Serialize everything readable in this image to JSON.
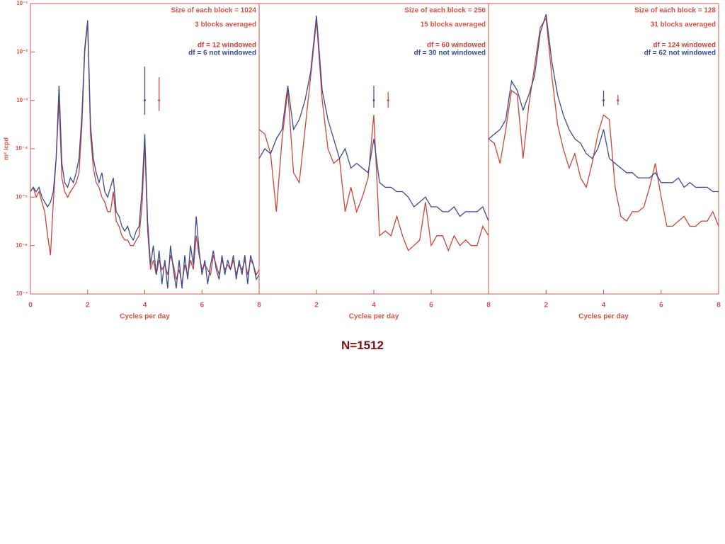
{
  "chart_data": [
    {
      "type": "line",
      "yscale": "log",
      "xlabel": "Cycles per day",
      "ylabel": "m² /cpd",
      "annotations": [
        "Size of each block = 1024",
        "3 blocks averaged"
      ],
      "xlim": [
        0,
        8
      ],
      "xticks": [
        0,
        2,
        4,
        6,
        8
      ],
      "ylim": [
        1e-07,
        0.1
      ],
      "yticks": [
        {
          "value": 1e-07,
          "label": "10⁻⁷"
        },
        {
          "value": 1e-06,
          "label": "10⁻⁶"
        },
        {
          "value": 1e-05,
          "label": "10⁻⁵"
        },
        {
          "value": 0.0001,
          "label": "10⁻⁴"
        },
        {
          "value": 0.001,
          "label": "10⁻³"
        },
        {
          "value": 0.01,
          "label": "10⁻²"
        },
        {
          "value": 0.1,
          "label": "10⁻¹"
        }
      ],
      "x": [
        0,
        0.1,
        0.2,
        0.3,
        0.4,
        0.5,
        0.6,
        0.7,
        0.8,
        0.9,
        1,
        1.1,
        1.2,
        1.3,
        1.4,
        1.5,
        1.6,
        1.7,
        1.8,
        1.9,
        2,
        2.1,
        2.2,
        2.3,
        2.4,
        2.5,
        2.6,
        2.7,
        2.8,
        2.9,
        3,
        3.1,
        3.2,
        3.3,
        3.4,
        3.5,
        3.6,
        3.7,
        3.8,
        3.9,
        4,
        4.1,
        4.2,
        4.3,
        4.4,
        4.5,
        4.6,
        4.7,
        4.8,
        4.9,
        5,
        5.1,
        5.2,
        5.3,
        5.4,
        5.5,
        5.6,
        5.7,
        5.8,
        5.9,
        6,
        6.1,
        6.2,
        6.3,
        6.4,
        6.5,
        6.6,
        6.7,
        6.8,
        6.9,
        7,
        7.1,
        7.2,
        7.3,
        7.4,
        7.5,
        7.6,
        7.7,
        7.8,
        7.9,
        8
      ],
      "series": [
        {
          "name": "df =  12 windowed",
          "color": "#c8443c",
          "values": [
            1.3e-05,
            1.6e-05,
            1e-05,
            1.3e-05,
            7.9e-06,
            5e-06,
            1.6e-06,
            6.3e-07,
            7.9e-06,
            6.3e-05,
            0.001,
            2.5e-05,
            1.3e-05,
            1e-05,
            1.3e-05,
            1.6e-05,
            2e-05,
            3.2e-05,
            0.00032,
            0.01,
            0.04,
            0.0002,
            4e-05,
            2e-05,
            1.6e-05,
            1e-05,
            7.9e-06,
            5e-06,
            5e-06,
            1.3e-05,
            3.2e-06,
            2.5e-06,
            1.6e-06,
            1.3e-06,
            1.3e-06,
            1e-06,
            1e-06,
            1.3e-06,
            1.6e-06,
            6.3e-06,
            0.00013,
            2e-06,
            3.2e-07,
            5e-07,
            2.5e-07,
            5e-07,
            3.2e-07,
            4e-07,
            2.5e-07,
            6.3e-07,
            4e-07,
            2e-07,
            3.2e-07,
            1.6e-07,
            4e-07,
            2.5e-07,
            5e-07,
            3.2e-07,
            1.6e-06,
            6.3e-07,
            3.2e-07,
            4e-07,
            3.2e-07,
            2.5e-07,
            6.3e-07,
            4e-07,
            2.5e-07,
            5e-07,
            3.2e-07,
            4e-07,
            3.2e-07,
            5e-07,
            2.5e-07,
            4e-07,
            3.2e-07,
            5e-07,
            2.5e-07,
            5e-07,
            4e-07,
            2.5e-07,
            3.2e-07
          ]
        },
        {
          "name": "df =  6 not windowed",
          "color": "#3b4a8e",
          "values": [
            1.3e-05,
            1.6e-05,
            1.3e-05,
            1.6e-05,
            1e-05,
            7.9e-06,
            6.3e-06,
            7.9e-06,
            1.3e-05,
            6.3e-05,
            0.002,
            5e-05,
            2e-05,
            1.6e-05,
            2.5e-05,
            2e-05,
            3.2e-05,
            6.3e-05,
            0.0005,
            0.012,
            0.045,
            0.00032,
            6.3e-05,
            3.2e-05,
            2e-05,
            3.2e-05,
            1.3e-05,
            1e-05,
            1.6e-05,
            2.5e-05,
            5e-06,
            4e-06,
            2.5e-06,
            2e-06,
            2.5e-06,
            1.6e-06,
            1.3e-06,
            2e-06,
            2.5e-06,
            1.3e-05,
            0.0002,
            3.2e-06,
            4e-07,
            1e-06,
            2.5e-07,
            7.9e-07,
            1.6e-07,
            5e-07,
            1.3e-07,
            1e-06,
            3.2e-07,
            1.3e-07,
            5e-07,
            1.3e-07,
            6.3e-07,
            2e-07,
            1e-06,
            4e-07,
            4e-06,
            7.9e-07,
            2.5e-07,
            5e-07,
            1.6e-07,
            4e-07,
            7.9e-07,
            3.2e-07,
            2e-07,
            6.3e-07,
            2.5e-07,
            5e-07,
            3.2e-07,
            6.3e-07,
            2e-07,
            5e-07,
            2.5e-07,
            6.3e-07,
            1.6e-07,
            6.3e-07,
            4e-07,
            2e-07,
            2.5e-07
          ]
        }
      ],
      "error_bars": [
        {
          "x": 4,
          "y": 0.001,
          "low": 0.0005,
          "high": 0.005,
          "color": "#3b4a8e"
        },
        {
          "x": 4.5,
          "y": 0.001,
          "low": 0.0006,
          "high": 0.003,
          "color": "#c8443c"
        }
      ]
    },
    {
      "type": "line",
      "yscale": "log",
      "xlabel": "Cycles per day",
      "annotations": [
        "Size of each block =  256",
        "15 blocks averaged"
      ],
      "xlim": [
        0,
        8
      ],
      "xticks": [
        2,
        4,
        6,
        8
      ],
      "ylim": [
        1e-07,
        0.1
      ],
      "x": [
        0,
        0.2,
        0.4,
        0.6,
        0.8,
        1,
        1.2,
        1.4,
        1.6,
        1.8,
        2,
        2.2,
        2.4,
        2.6,
        2.8,
        3,
        3.2,
        3.4,
        3.6,
        3.8,
        4,
        4.2,
        4.4,
        4.6,
        4.8,
        5,
        5.2,
        5.4,
        5.6,
        5.8,
        6,
        6.2,
        6.4,
        6.6,
        6.8,
        7,
        7.2,
        7.4,
        7.6,
        7.8,
        8
      ],
      "series": [
        {
          "name": "df =  60 windowed",
          "color": "#c8443c",
          "values": [
            0.00025,
            0.0002,
            7.9e-05,
            5e-06,
            0.00016,
            0.0016,
            3.2e-05,
            2e-05,
            0.00025,
            0.0032,
            0.045,
            0.001,
            0.0001,
            5e-05,
            6.3e-05,
            5e-06,
            1.6e-05,
            5e-06,
            1e-05,
            2.5e-05,
            0.0005,
            1.6e-06,
            2e-06,
            1.6e-06,
            4e-06,
            1.6e-06,
            7.9e-07,
            1e-06,
            1.3e-06,
            7.9e-06,
            1e-06,
            1.6e-06,
            1.6e-06,
            7.9e-07,
            1.6e-06,
            1e-06,
            1.3e-06,
            1e-06,
            1e-06,
            2.5e-06,
            1.6e-06
          ]
        },
        {
          "name": "df = 30 not windowed",
          "color": "#3b4a8e",
          "values": [
            6.3e-05,
            0.0001,
            7.9e-05,
            0.00016,
            0.00025,
            0.002,
            0.00025,
            0.0004,
            0.001,
            0.004,
            0.056,
            0.0016,
            0.0004,
            0.00016,
            6.3e-05,
            0.0001,
            4e-05,
            5e-05,
            4e-05,
            3.2e-05,
            0.00016,
            2e-05,
            1.6e-05,
            1.6e-05,
            1.3e-05,
            1.3e-05,
            1e-05,
            6.3e-06,
            7.9e-06,
            1e-05,
            6.3e-06,
            6.3e-06,
            5e-06,
            5e-06,
            6.3e-06,
            4e-06,
            5e-06,
            5e-06,
            5e-06,
            6.3e-06,
            3.2e-06
          ]
        }
      ],
      "error_bars": [
        {
          "x": 4,
          "y": 0.001,
          "low": 0.0007,
          "high": 0.002,
          "color": "#3b4a8e"
        },
        {
          "x": 4.5,
          "y": 0.001,
          "low": 0.0007,
          "high": 0.0015,
          "color": "#c8443c"
        }
      ]
    },
    {
      "type": "line",
      "yscale": "log",
      "xlabel": "Cycles per day",
      "annotations": [
        "Size of each block =  128",
        "31 blocks averaged"
      ],
      "xlim": [
        0,
        8
      ],
      "xticks": [
        2,
        4,
        6,
        8
      ],
      "ylim": [
        1e-07,
        0.1
      ],
      "x": [
        0,
        0.2,
        0.4,
        0.6,
        0.8,
        1,
        1.2,
        1.4,
        1.6,
        1.8,
        2,
        2.2,
        2.4,
        2.6,
        2.8,
        3,
        3.2,
        3.4,
        3.6,
        3.8,
        4,
        4.2,
        4.4,
        4.6,
        4.8,
        5,
        5.2,
        5.4,
        5.6,
        5.8,
        6,
        6.2,
        6.4,
        6.6,
        6.8,
        7,
        7.2,
        7.4,
        7.6,
        7.8,
        8
      ],
      "series": [
        {
          "name": "df = 124 windowed",
          "color": "#c8443c",
          "values": [
            0.00016,
            0.00013,
            5e-05,
            0.00025,
            0.0016,
            0.0013,
            6.3e-05,
            0.00079,
            0.005,
            0.032,
            0.05,
            0.0032,
            0.00032,
            0.0001,
            4e-05,
            7.9e-05,
            2.5e-05,
            1.6e-05,
            5e-05,
            0.0002,
            0.0005,
            0.0004,
            1.6e-05,
            4e-06,
            3.2e-06,
            5e-06,
            5e-06,
            6.3e-06,
            1.6e-05,
            5e-05,
            1e-05,
            2.5e-06,
            2.5e-06,
            3.2e-06,
            4e-06,
            2.5e-06,
            2.5e-06,
            3.2e-06,
            3.2e-06,
            5e-06,
            2.5e-06
          ]
        },
        {
          "name": "df = 62 not windowed",
          "color": "#3b4a8e",
          "values": [
            0.00016,
            0.0002,
            0.00025,
            0.0004,
            0.0025,
            0.0016,
            0.00063,
            0.0013,
            0.0032,
            0.025,
            0.06,
            0.0063,
            0.0013,
            0.0005,
            0.00025,
            0.00016,
            0.00013,
            7.9e-05,
            6.3e-05,
            0.0001,
            0.00025,
            6.3e-05,
            5e-05,
            4e-05,
            3.2e-05,
            3.2e-05,
            2.5e-05,
            2.5e-05,
            2.5e-05,
            3.2e-05,
            2e-05,
            2e-05,
            2e-05,
            2.5e-05,
            1.6e-05,
            2e-05,
            1.6e-05,
            1.6e-05,
            1.6e-05,
            1.3e-05,
            1.3e-05
          ]
        }
      ],
      "error_bars": [
        {
          "x": 4,
          "y": 0.001,
          "low": 0.00075,
          "high": 0.0016,
          "color": "#3b4a8e"
        },
        {
          "x": 4.5,
          "y": 0.001,
          "low": 0.0008,
          "high": 0.0013,
          "color": "#c8443c"
        }
      ]
    }
  ],
  "caption": "N=1512"
}
